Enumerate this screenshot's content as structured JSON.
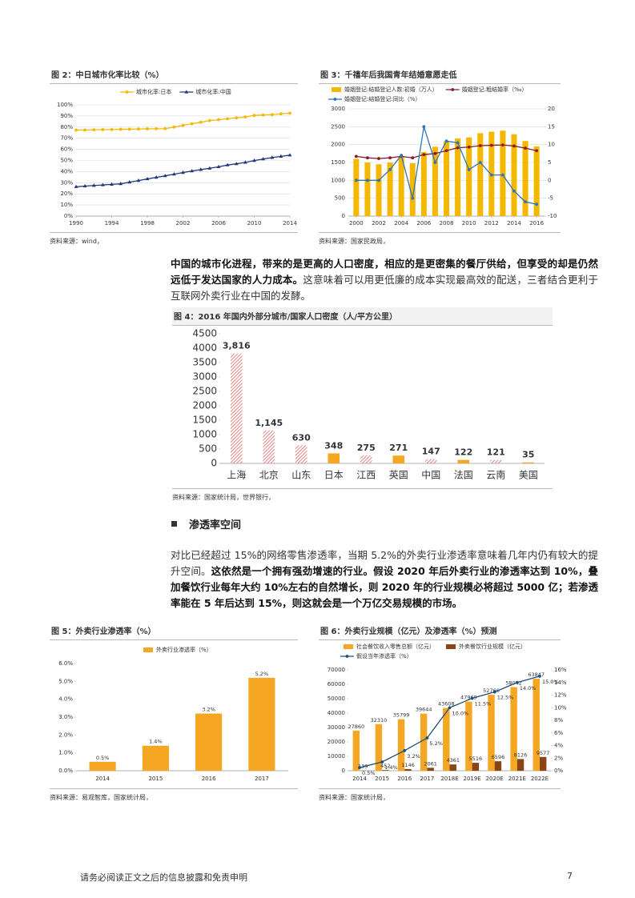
{
  "chart_data": [
    {
      "type": "line",
      "title": "图 2：中日城市化率比较（%）",
      "source": "资料来源：wind，",
      "x": [
        1990,
        1991,
        1992,
        1993,
        1994,
        1995,
        1996,
        1997,
        1998,
        1999,
        2000,
        2001,
        2002,
        2003,
        2004,
        2005,
        2006,
        2007,
        2008,
        2009,
        2010,
        2011,
        2012,
        2013,
        2014
      ],
      "xlim": [
        1990,
        2014
      ],
      "xticks": [
        1990,
        1994,
        1998,
        2002,
        2006,
        2010,
        2014
      ],
      "ylim": [
        0,
        100
      ],
      "yticks": [
        {
          "value": 0,
          "label": "0%"
        },
        {
          "value": 10,
          "label": "10%"
        },
        {
          "value": 20,
          "label": "20%"
        },
        {
          "value": 30,
          "label": "30%"
        },
        {
          "value": 40,
          "label": "40%"
        },
        {
          "value": 50,
          "label": "50%"
        },
        {
          "value": 60,
          "label": "60%"
        },
        {
          "value": 70,
          "label": "70%"
        },
        {
          "value": 80,
          "label": "80%"
        },
        {
          "value": 90,
          "label": "90%"
        },
        {
          "value": 100,
          "label": "100%"
        }
      ],
      "grid": true,
      "series": [
        {
          "name": "城市化率:日本",
          "color": "#f5b800",
          "marker": "circle",
          "values": [
            77.3,
            77.4,
            77.6,
            77.7,
            77.8,
            78.0,
            78.1,
            78.3,
            78.4,
            78.5,
            78.6,
            80.0,
            81.6,
            83.0,
            84.3,
            85.9,
            86.7,
            87.5,
            88.3,
            89.1,
            90.5,
            90.9,
            91.2,
            91.9,
            92.5
          ]
        },
        {
          "name": "城市化率:中国",
          "color": "#1f3a7a",
          "marker": "triangle",
          "values": [
            26.4,
            27.0,
            27.5,
            28.0,
            28.5,
            29.0,
            30.5,
            31.9,
            33.4,
            34.8,
            36.2,
            37.7,
            39.1,
            40.5,
            41.8,
            43.0,
            44.3,
            45.9,
            47.0,
            48.3,
            49.9,
            51.3,
            52.6,
            53.7,
            54.8
          ]
        }
      ]
    },
    {
      "type": "combo",
      "title": "图 3：千禧年后我国青年结婚意愿走低",
      "source": "资料来源：国家民政局，",
      "x": [
        2000,
        2001,
        2002,
        2003,
        2004,
        2005,
        2006,
        2007,
        2008,
        2009,
        2010,
        2011,
        2012,
        2013,
        2014,
        2015,
        2016
      ],
      "xlim": [
        1999.3,
        2016.7
      ],
      "xticks": [
        2000,
        2002,
        2004,
        2006,
        2008,
        2010,
        2012,
        2014,
        2016
      ],
      "ylim": [
        0,
        3000
      ],
      "yticks": [
        0,
        500,
        1000,
        1500,
        2000,
        2500,
        3000
      ],
      "y2lim": [
        -10,
        20
      ],
      "y2ticks": [
        -10,
        -5,
        0,
        5,
        10,
        15,
        20
      ],
      "grid": true,
      "series": [
        {
          "name": "婚姻登记:结婚登记人数:初婚（万人）",
          "kind": "bar",
          "color": "#f5b800",
          "values": [
            1600,
            1500,
            1450,
            1500,
            1680,
            1480,
            1790,
            1940,
            2090,
            2170,
            2200,
            2320,
            2360,
            2390,
            2290,
            2100,
            1950
          ]
        },
        {
          "name": "婚姻登记:粗结婚率（‰）",
          "kind": "line",
          "axis": "y2",
          "color": "#8b1a2b",
          "marker": "circle",
          "values": [
            6.7,
            6.3,
            6.1,
            6.3,
            6.7,
            6.3,
            7.2,
            7.5,
            8.3,
            9.1,
            9.3,
            9.7,
            9.8,
            9.9,
            9.6,
            9.0,
            8.3
          ]
        },
        {
          "name": "婚姻登记:结婚登记:同比（%）",
          "kind": "line",
          "axis": "y2",
          "color": "#2e75b6",
          "marker": "circle",
          "values": [
            0,
            0,
            0,
            3,
            7,
            -5,
            15,
            5,
            11,
            10.5,
            3,
            5,
            1.5,
            1.5,
            -3,
            -6,
            -6.7
          ]
        }
      ]
    },
    {
      "type": "bar",
      "title": "图 4：2016 年国内外部分城市/国家人口密度（人/平方公里）",
      "source": "资料来源：国家统计局，世界银行，",
      "categories": [
        "上海",
        "北京",
        "山东",
        "日本",
        "江西",
        "英国",
        "中国",
        "法国",
        "云南",
        "美国"
      ],
      "values": [
        3816,
        1145,
        630,
        348,
        275,
        271,
        147,
        122,
        121,
        35
      ],
      "value_labels": [
        "3,816",
        "1,145",
        "630",
        "348",
        "275",
        "271",
        "147",
        "122",
        "121",
        "35"
      ],
      "hatched": [
        true,
        true,
        true,
        false,
        true,
        false,
        true,
        false,
        true,
        false
      ],
      "color": "#f5a623",
      "hatch_color": "#d9534f",
      "ylim": [
        0,
        4500
      ],
      "yticks": [
        0,
        500,
        1000,
        1500,
        2000,
        2500,
        3000,
        3500,
        4000,
        4500
      ],
      "grid": false
    },
    {
      "type": "bar",
      "title": "图 5：外卖行业渗透率（%）",
      "source": "资料来源：易观智库，国家统计局，",
      "categories": [
        "2014",
        "2015",
        "2016",
        "2017"
      ],
      "ylim": [
        0,
        6
      ],
      "yticks": [
        {
          "value": 0,
          "label": "0.0%"
        },
        {
          "value": 1,
          "label": "1.0%"
        },
        {
          "value": 2,
          "label": "2.0%"
        },
        {
          "value": 3,
          "label": "3.0%"
        },
        {
          "value": 4,
          "label": "4.0%"
        },
        {
          "value": 5,
          "label": "5.0%"
        },
        {
          "value": 6,
          "label": "6.0%"
        }
      ],
      "grid": false,
      "series": [
        {
          "name": "外卖行业渗透率（%）",
          "kind": "bar",
          "color": "#f5a623",
          "values": [
            0.5,
            1.4,
            3.2,
            5.2
          ],
          "value_labels": [
            "0.5%",
            "1.4%",
            "3.2%",
            "5.2%"
          ]
        }
      ]
    },
    {
      "type": "combo",
      "title": "图 6：外卖行业规模（亿元）及渗透率（%）预测",
      "source": "资料来源：国家统计局，",
      "categories": [
        "2014",
        "2015",
        "2016",
        "2017",
        "2018E",
        "2019E",
        "2020E",
        "2021E",
        "2022E"
      ],
      "ylim": [
        0,
        70000
      ],
      "yticks": [
        0,
        10000,
        20000,
        30000,
        40000,
        50000,
        60000,
        70000
      ],
      "y2lim": [
        0,
        16
      ],
      "y2ticks": [
        {
          "value": 0,
          "label": "0%"
        },
        {
          "value": 2,
          "label": "2%"
        },
        {
          "value": 4,
          "label": "4%"
        },
        {
          "value": 6,
          "label": "6%"
        },
        {
          "value": 8,
          "label": "8%"
        },
        {
          "value": 10,
          "label": "10%"
        },
        {
          "value": 12,
          "label": "12%"
        },
        {
          "value": 14,
          "label": "14%"
        },
        {
          "value": 16,
          "label": "16%"
        }
      ],
      "grid": false,
      "show_values": true,
      "series": [
        {
          "name": "社会餐饮收入零售总额（亿元）",
          "kind": "bar",
          "color": "#f5a623",
          "values": [
            27860,
            32310,
            35799,
            39644,
            43608,
            47969,
            52766,
            58042,
            63847
          ]
        },
        {
          "name": "外卖餐饮行业规模（亿元）",
          "kind": "bar",
          "color": "#8b4513",
          "values": [
            139,
            452,
            1146,
            2061,
            4361,
            5516,
            6596,
            8126,
            9577
          ]
        },
        {
          "name": "假设当年渗透率（%）",
          "kind": "line",
          "axis": "y2",
          "color": "#1f4e79",
          "marker": "circle",
          "values": [
            0.5,
            1.4,
            3.2,
            5.2,
            10.0,
            11.5,
            12.5,
            14.0,
            15.0
          ],
          "value_labels": [
            "0.5%",
            "1.4%",
            "3.2%",
            "5.2%",
            "10.0%",
            "11.5%",
            "12.5%",
            "14.0%",
            "15.0%"
          ]
        }
      ]
    }
  ],
  "paragraphs": [
    {
      "runs": [
        {
          "text": "中国的城市化进程，带来的是更高的人口密度，相应的是更密集的餐厅供给，但享受的却是仍然远低于发达国家的人力成本。",
          "bold": true
        },
        {
          "text": "这意味着可以用更低廉的成本实现最高效的配送，三者结合更利于互联网外卖行业在中国的发酵。",
          "bold": false
        }
      ]
    },
    {
      "runs": [
        {
          "text": "对比已经超过 15%的网络零售渗透率，当期 5.2%的外卖行业渗透率意味着几年内仍有较大的提升空间。",
          "bold": false
        },
        {
          "text": "这依然是一个拥有强劲增速的行业。假设 2020 年后外卖行业的渗透率达到 10%，叠加餐饮行业每年大约 10%左右的自然增长，则 2020 年的行业规模必将超过 5000 亿；若渗透率能在 5 年后达到 15%，则这就会是一个万亿交易规模的市场。",
          "bold": true
        }
      ]
    }
  ],
  "section_heading": "渗透率空间",
  "footer": {
    "text": "请务必阅读正文之后的信息披露和免责申明",
    "page": "7"
  }
}
